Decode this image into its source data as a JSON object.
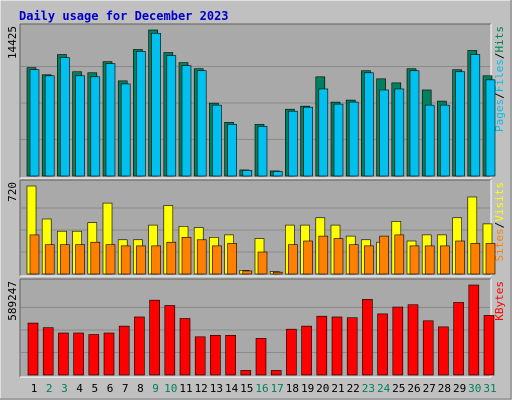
{
  "title": "Daily usage for December 2023",
  "colors": {
    "background": "#c0c0c0",
    "panel": "#a9a9a9",
    "title": "#0000cc",
    "hits": "#00805c",
    "files": "#00c0f0",
    "pages": "#00c0f0",
    "visits": "#ffff00",
    "sites": "#ff8000",
    "kbytes": "#ff0000",
    "weekend": "#00805c"
  },
  "chart_data": [
    {
      "type": "bar",
      "name": "hits-files-pages",
      "categories": [
        "1",
        "2",
        "3",
        "4",
        "5",
        "6",
        "7",
        "8",
        "9",
        "10",
        "11",
        "12",
        "13",
        "14",
        "15",
        "16",
        "17",
        "18",
        "19",
        "20",
        "21",
        "22",
        "23",
        "24",
        "25",
        "26",
        "27",
        "28",
        "29",
        "30",
        "31"
      ],
      "weekend_days": [
        "2",
        "3",
        "9",
        "10",
        "16",
        "17",
        "23",
        "24",
        "30",
        "31"
      ],
      "y_label": "14425",
      "ylim": [
        0,
        14425
      ],
      "legend": [
        {
          "label": "Pages",
          "color": "#00c0f0"
        },
        {
          "label": "/",
          "color": "#000000"
        },
        {
          "label": "Files",
          "color": "#00c0f0"
        },
        {
          "label": "/",
          "color": "#000000"
        },
        {
          "label": "Hits",
          "color": "#00805c"
        }
      ],
      "series": [
        {
          "key": "hits",
          "values": [
            10700,
            10000,
            12000,
            10300,
            10200,
            11300,
            9400,
            12500,
            14425,
            12200,
            11200,
            10600,
            7200,
            5300,
            600,
            5100,
            500,
            6600,
            6900,
            9800,
            7300,
            7500,
            10400,
            9600,
            9200,
            10600,
            8500,
            7400,
            10500,
            12400,
            9900
          ]
        },
        {
          "key": "files",
          "values": [
            10500,
            9900,
            11700,
            9900,
            9800,
            11100,
            9100,
            12300,
            14100,
            11900,
            10900,
            10400,
            7000,
            5100,
            550,
            4900,
            450,
            6400,
            6800,
            8600,
            7100,
            7300,
            10200,
            8500,
            8600,
            10400,
            7000,
            7000,
            10300,
            12000,
            9500
          ]
        }
      ]
    },
    {
      "type": "bar",
      "name": "visits-sites",
      "categories": [
        "1",
        "2",
        "3",
        "4",
        "5",
        "6",
        "7",
        "8",
        "9",
        "10",
        "11",
        "12",
        "13",
        "14",
        "15",
        "16",
        "17",
        "18",
        "19",
        "20",
        "21",
        "22",
        "23",
        "24",
        "25",
        "26",
        "27",
        "28",
        "29",
        "30",
        "31"
      ],
      "y_label": "720",
      "ylim": [
        0,
        720
      ],
      "legend": [
        {
          "label": "Sites",
          "color": "#ff8000"
        },
        {
          "label": "/",
          "color": "#000000"
        },
        {
          "label": "Visits",
          "color": "#ffff00"
        }
      ],
      "series": [
        {
          "key": "visits",
          "values": [
            720,
            450,
            350,
            350,
            420,
            580,
            280,
            280,
            400,
            560,
            390,
            380,
            300,
            320,
            30,
            290,
            20,
            400,
            400,
            460,
            400,
            310,
            280,
            260,
            430,
            270,
            320,
            320,
            460,
            630,
            410
          ]
        },
        {
          "key": "sites",
          "values": [
            320,
            240,
            240,
            240,
            260,
            240,
            230,
            230,
            230,
            260,
            300,
            280,
            230,
            250,
            25,
            180,
            15,
            240,
            270,
            310,
            290,
            240,
            230,
            310,
            320,
            230,
            230,
            230,
            270,
            250,
            250
          ]
        }
      ]
    },
    {
      "type": "bar",
      "name": "kbytes",
      "categories": [
        "1",
        "2",
        "3",
        "4",
        "5",
        "6",
        "7",
        "8",
        "9",
        "10",
        "11",
        "12",
        "13",
        "14",
        "15",
        "16",
        "17",
        "18",
        "19",
        "20",
        "21",
        "22",
        "23",
        "24",
        "25",
        "26",
        "27",
        "28",
        "29",
        "30",
        "31"
      ],
      "y_label": "589247",
      "ylim": [
        0,
        589247
      ],
      "legend": [
        {
          "label": "KBytes",
          "color": "#ff0000"
        }
      ],
      "series": [
        {
          "key": "kbytes",
          "values": [
            340000,
            310000,
            275000,
            275000,
            265000,
            275000,
            320000,
            380000,
            490000,
            455000,
            370000,
            250000,
            260000,
            260000,
            30000,
            240000,
            30000,
            300000,
            320000,
            385000,
            380000,
            375000,
            495000,
            400000,
            445000,
            460000,
            355000,
            315000,
            475000,
            589247,
            390000
          ]
        }
      ]
    }
  ]
}
